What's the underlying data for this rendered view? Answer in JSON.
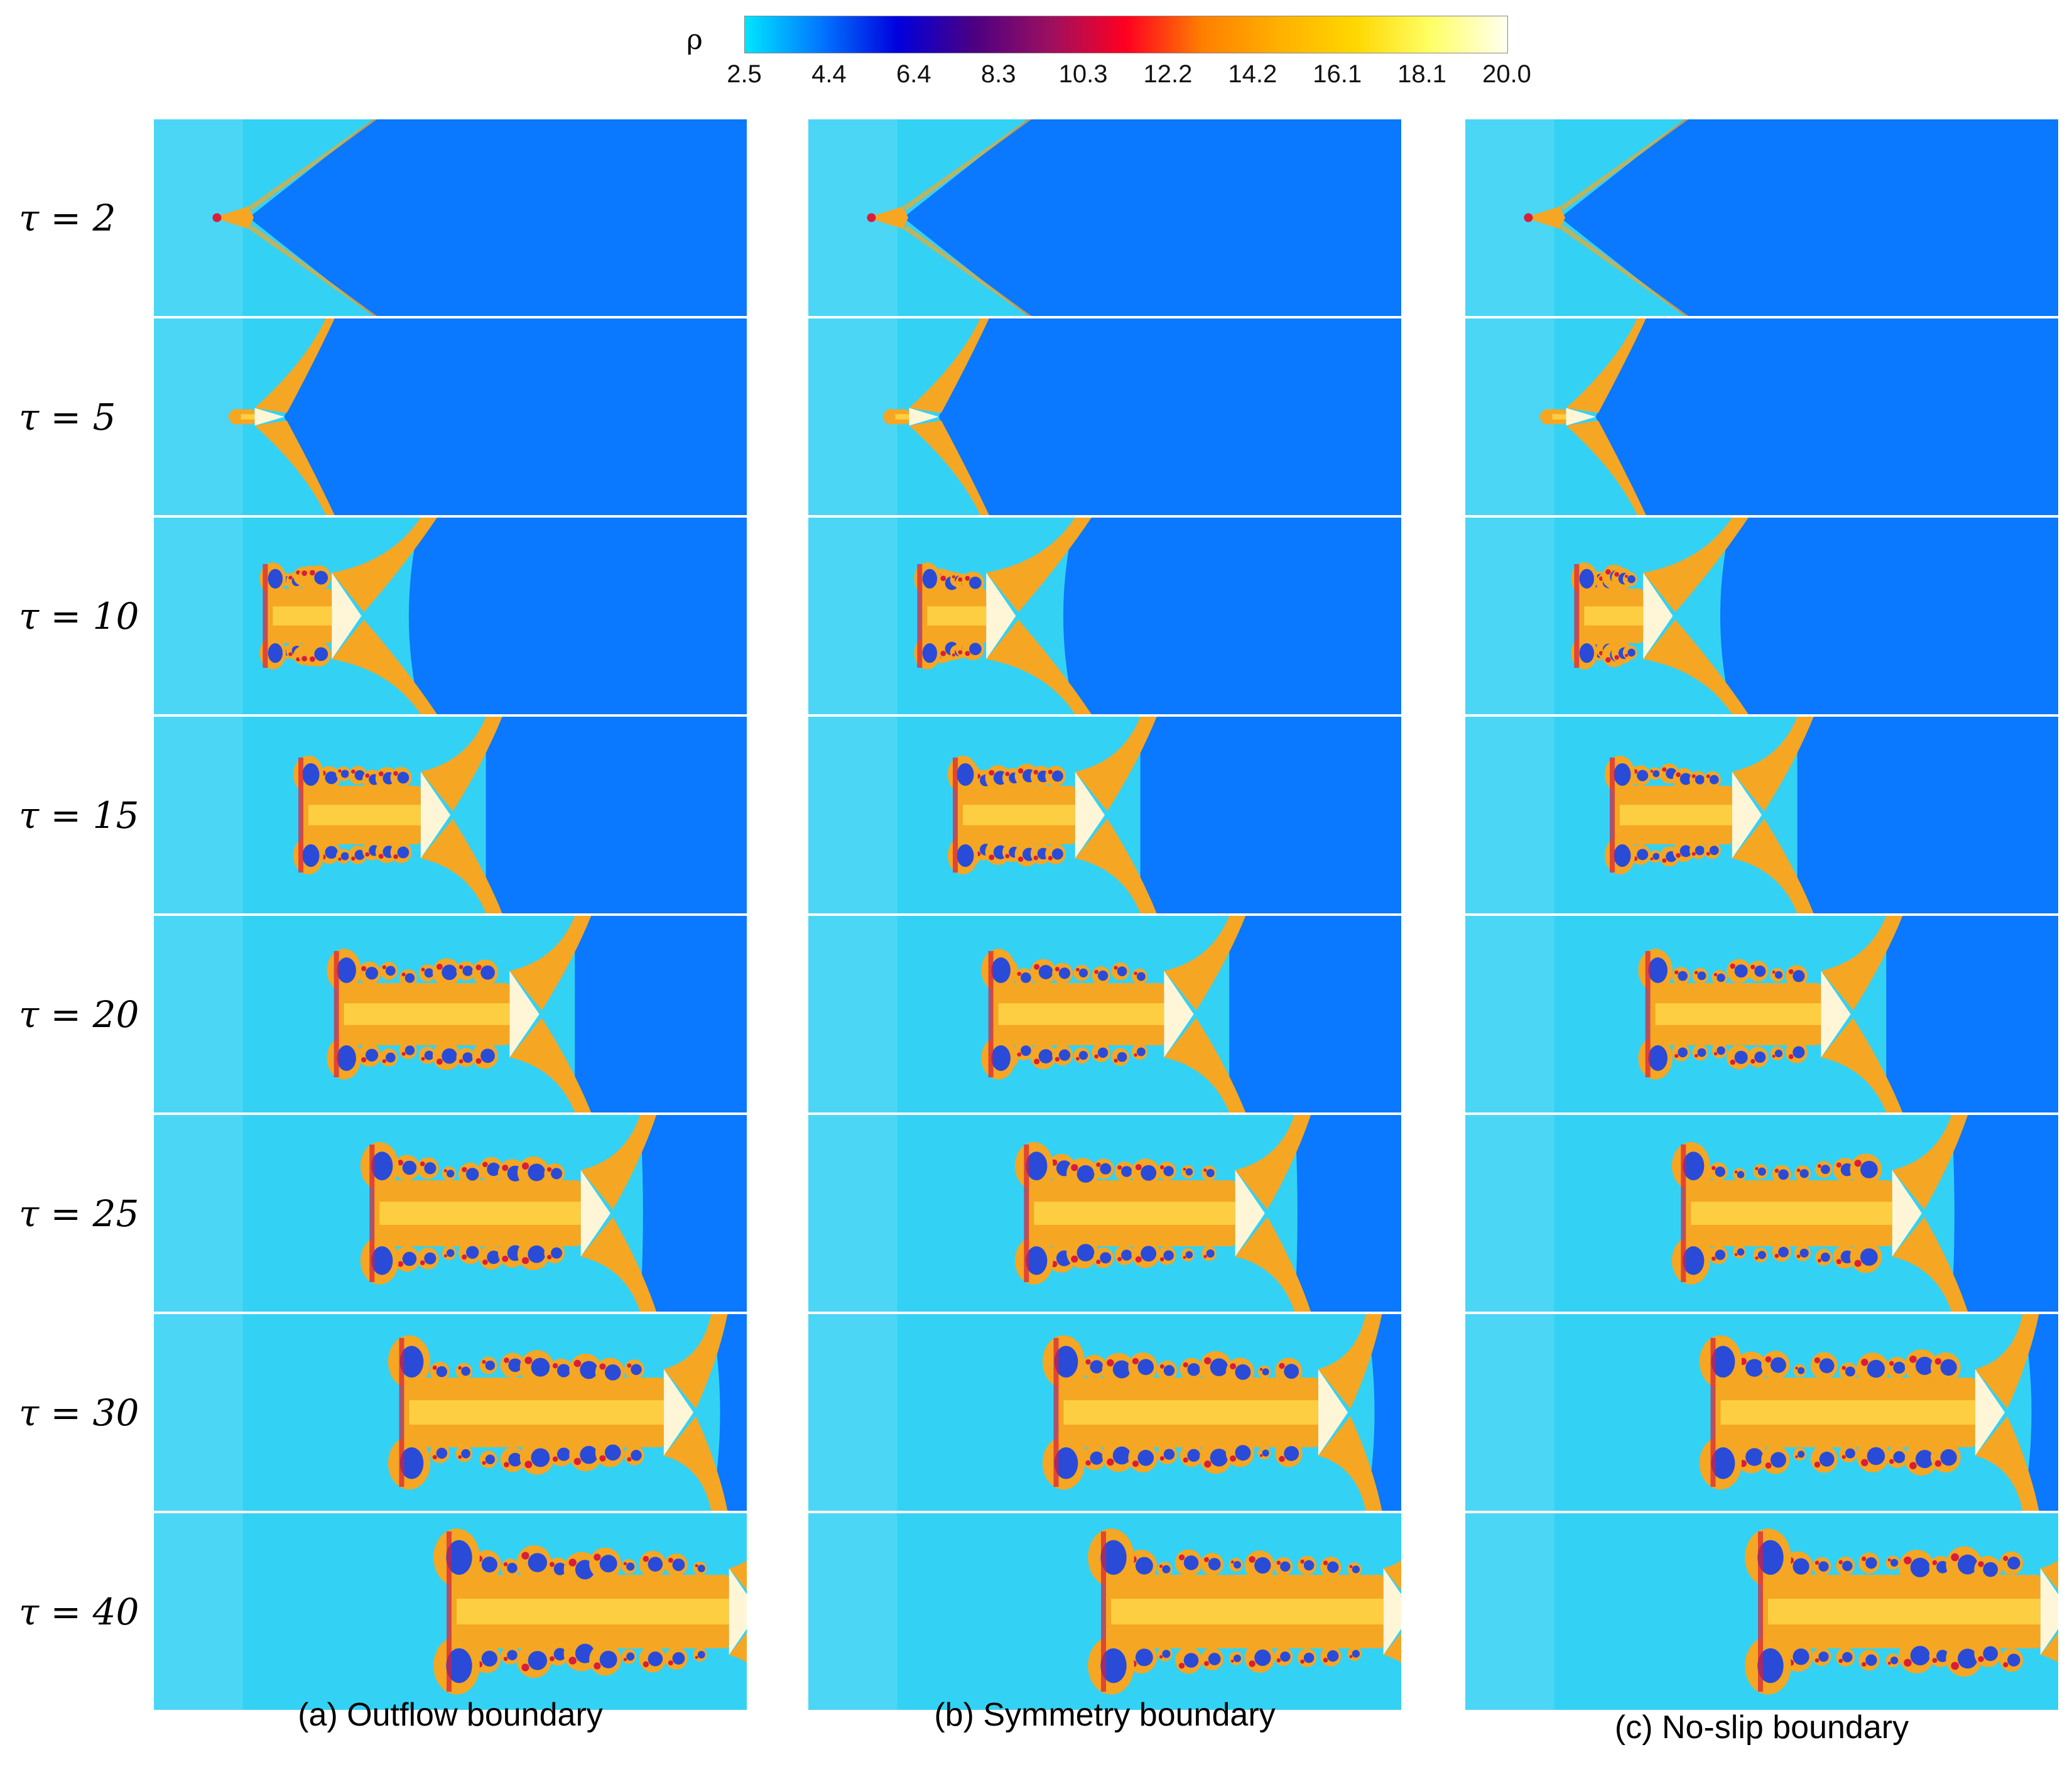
{
  "colorbar": {
    "label": "ρ",
    "ticks": [
      "2.5",
      "4.4",
      "6.4",
      "8.3",
      "10.3",
      "12.2",
      "14.2",
      "16.1",
      "18.1",
      "20.0"
    ],
    "stops": [
      "#00e5ff",
      "#0077ff",
      "#0000dd",
      "#4b0082",
      "#9b1060",
      "#ff0020",
      "#ff7f00",
      "#ffb000",
      "#ffd700",
      "#ffff66",
      "#fffff0"
    ]
  },
  "rows": [
    "τ = 2",
    "τ = 5",
    "τ = 10",
    "τ = 15",
    "τ = 20",
    "τ = 25",
    "τ = 30",
    "τ = 40"
  ],
  "columns": [
    {
      "caption": "(a) Outflow boundary"
    },
    {
      "caption": "(b) Symmetry boundary"
    },
    {
      "caption": "(c) No-slip boundary"
    }
  ],
  "colors": {
    "ambient_gas": "#33d2f4",
    "ambient_gas_light": "#5ed8f5",
    "dense_medium": "#0a78ff",
    "jet_orange": "#f5a623",
    "jet_yellow": "#ffd84a",
    "jet_white": "#fff6d8",
    "vortex_blue": "#2a4bd8",
    "vortex_red": "#d81e3a"
  }
}
